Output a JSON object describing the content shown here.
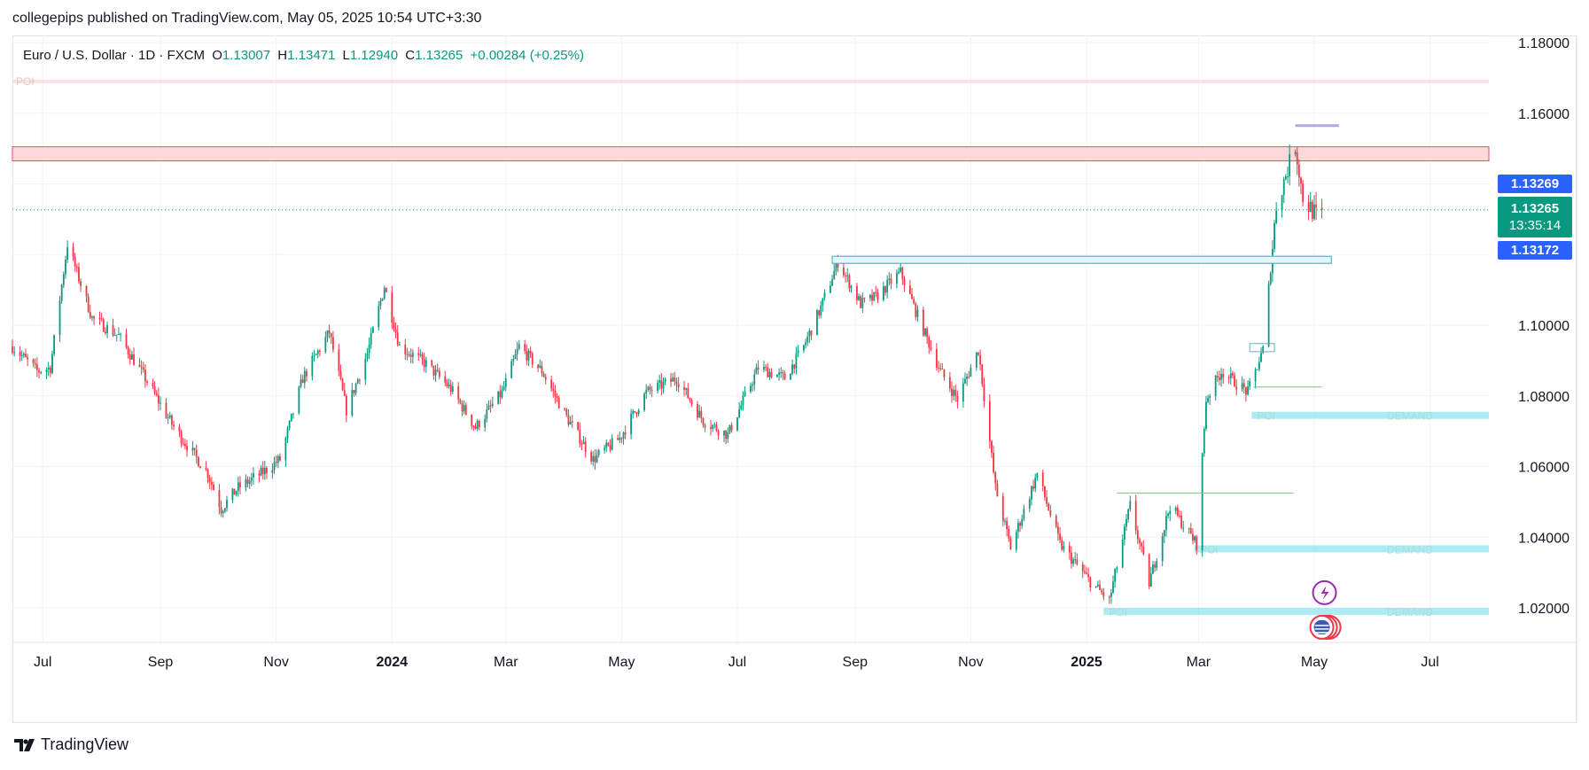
{
  "caption": "collegepips published on TradingView.com, May 05, 2025 10:54 UTC+3:30",
  "legend": {
    "symbol": "Euro / U.S. Dollar · 1D · FXCM",
    "o_label": "O",
    "o": "1.13007",
    "h_label": "H",
    "h": "1.13471",
    "l_label": "L",
    "l": "1.12940",
    "c_label": "C",
    "c": "1.13265",
    "change": "+0.00284 (+0.25%)"
  },
  "price_tags": {
    "upper": "1.13269",
    "last": "1.13265",
    "countdown": "13:35:14",
    "lower": "1.13172"
  },
  "zone_labels": {
    "poi": "POI",
    "demand": "DEMAND"
  },
  "brand": "TradingView",
  "colors": {
    "up": "#089981",
    "down": "#f23645",
    "supply": "#f7a1a8",
    "demand": "#8ee6ee",
    "box": "#5ab3bd",
    "accent": "#2962ff",
    "event": "#9c27b0"
  },
  "chart_data": {
    "type": "candlestick",
    "title": "Euro / U.S. Dollar · 1D · FXCM",
    "ylim": [
      1.01,
      1.18
    ],
    "y_ticks": [
      "1.18000",
      "1.16000",
      "1.10000",
      "1.08000",
      "1.06000",
      "1.04000",
      "1.02000"
    ],
    "x_ticks": [
      "Jul",
      "Sep",
      "Nov",
      "2024",
      "Mar",
      "May",
      "Jul",
      "Sep",
      "Nov",
      "2025",
      "Mar",
      "May",
      "Jul"
    ],
    "x_range": [
      "2023-06-15",
      "2025-08-01"
    ],
    "grid": true,
    "last_price": 1.13265,
    "path": [
      [
        "2023-06-15",
        1.094
      ],
      [
        "2023-06-28",
        1.087
      ],
      [
        "2023-07-05",
        1.088
      ],
      [
        "2023-07-14",
        1.123
      ],
      [
        "2023-07-27",
        1.102
      ],
      [
        "2023-08-10",
        1.097
      ],
      [
        "2023-08-24",
        1.085
      ],
      [
        "2023-09-07",
        1.072
      ],
      [
        "2023-09-15",
        1.066
      ],
      [
        "2023-09-26",
        1.058
      ],
      [
        "2023-10-03",
        1.048
      ],
      [
        "2023-10-12",
        1.054
      ],
      [
        "2023-10-24",
        1.058
      ],
      [
        "2023-11-03",
        1.062
      ],
      [
        "2023-11-15",
        1.085
      ],
      [
        "2023-11-29",
        1.098
      ],
      [
        "2023-12-08",
        1.076
      ],
      [
        "2023-12-19",
        1.092
      ],
      [
        "2023-12-28",
        1.111
      ],
      [
        "2024-01-05",
        1.094
      ],
      [
        "2024-01-19",
        1.089
      ],
      [
        "2024-02-01",
        1.082
      ],
      [
        "2024-02-14",
        1.071
      ],
      [
        "2024-02-28",
        1.081
      ],
      [
        "2024-03-08",
        1.094
      ],
      [
        "2024-03-20",
        1.087
      ],
      [
        "2024-04-02",
        1.074
      ],
      [
        "2024-04-16",
        1.062
      ],
      [
        "2024-04-30",
        1.068
      ],
      [
        "2024-05-14",
        1.081
      ],
      [
        "2024-05-30",
        1.085
      ],
      [
        "2024-06-13",
        1.073
      ],
      [
        "2024-06-26",
        1.069
      ],
      [
        "2024-07-12",
        1.088
      ],
      [
        "2024-07-26",
        1.085
      ],
      [
        "2024-08-05",
        1.094
      ],
      [
        "2024-08-14",
        1.105
      ],
      [
        "2024-08-23",
        1.118
      ],
      [
        "2024-09-04",
        1.106
      ],
      [
        "2024-09-12",
        1.108
      ],
      [
        "2024-09-25",
        1.115
      ],
      [
        "2024-10-03",
        1.104
      ],
      [
        "2024-10-16",
        1.087
      ],
      [
        "2024-10-25",
        1.079
      ],
      [
        "2024-11-05",
        1.093
      ],
      [
        "2024-11-14",
        1.054
      ],
      [
        "2024-11-22",
        1.037
      ],
      [
        "2024-12-06",
        1.058
      ],
      [
        "2024-12-18",
        1.038
      ],
      [
        "2025-01-02",
        1.028
      ],
      [
        "2025-01-13",
        1.022
      ],
      [
        "2025-01-24",
        1.049
      ],
      [
        "2025-02-03",
        1.027
      ],
      [
        "2025-02-14",
        1.049
      ],
      [
        "2025-02-28",
        1.038
      ],
      [
        "2025-03-05",
        1.079
      ],
      [
        "2025-03-13",
        1.087
      ],
      [
        "2025-03-27",
        1.081
      ],
      [
        "2025-04-04",
        1.093
      ],
      [
        "2025-04-11",
        1.134
      ],
      [
        "2025-04-21",
        1.151
      ],
      [
        "2025-04-25",
        1.136
      ],
      [
        "2025-05-02",
        1.131
      ],
      [
        "2025-05-05",
        1.13265
      ]
    ],
    "annotations": [
      {
        "type": "zone",
        "label": "POI",
        "y": [
          1.1685,
          1.1695
        ]
      },
      {
        "type": "zone",
        "label": "supply",
        "y": [
          1.1465,
          1.1505
        ]
      },
      {
        "type": "zone",
        "label": "POI / DEMAND",
        "y": [
          1.0735,
          1.0755
        ]
      },
      {
        "type": "zone",
        "label": "POI / DEMAND",
        "y": [
          1.0357,
          1.0377
        ]
      },
      {
        "type": "zone",
        "label": "POI / DEMAND",
        "y": [
          1.018,
          1.02
        ]
      }
    ]
  }
}
